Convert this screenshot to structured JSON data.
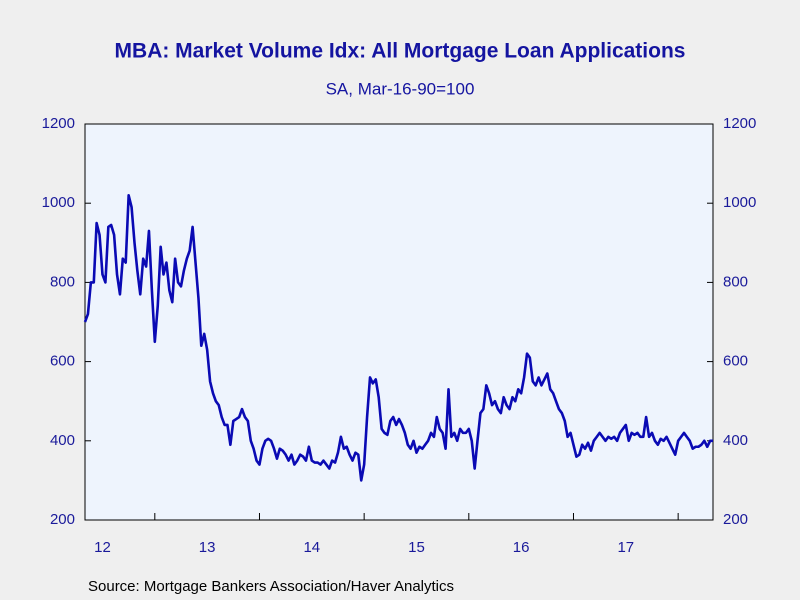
{
  "chart_data": {
    "type": "line",
    "title": "MBA: Market Volume Idx: All Mortgage Loan Applications",
    "subtitle": "SA, Mar-16-90=100",
    "source": "Source:  Mortgage Bankers Association/Haver Analytics",
    "x": [
      2012.333,
      2012.361,
      2012.389,
      2012.417,
      2012.444,
      2012.472,
      2012.5,
      2012.528,
      2012.556,
      2012.583,
      2012.611,
      2012.639,
      2012.667,
      2012.694,
      2012.722,
      2012.75,
      2012.778,
      2012.806,
      2012.833,
      2012.861,
      2012.889,
      2012.917,
      2012.944,
      2012.972,
      2013,
      2013.028,
      2013.056,
      2013.083,
      2013.111,
      2013.139,
      2013.167,
      2013.194,
      2013.222,
      2013.25,
      2013.278,
      2013.306,
      2013.333,
      2013.361,
      2013.389,
      2013.417,
      2013.444,
      2013.472,
      2013.5,
      2013.528,
      2013.556,
      2013.583,
      2013.611,
      2013.639,
      2013.667,
      2013.694,
      2013.722,
      2013.75,
      2013.778,
      2013.806,
      2013.833,
      2013.861,
      2013.889,
      2013.917,
      2013.944,
      2013.972,
      2014,
      2014.028,
      2014.056,
      2014.083,
      2014.111,
      2014.139,
      2014.167,
      2014.194,
      2014.222,
      2014.25,
      2014.278,
      2014.306,
      2014.333,
      2014.361,
      2014.389,
      2014.417,
      2014.444,
      2014.472,
      2014.5,
      2014.528,
      2014.556,
      2014.583,
      2014.611,
      2014.639,
      2014.667,
      2014.694,
      2014.722,
      2014.75,
      2014.778,
      2014.806,
      2014.833,
      2014.861,
      2014.889,
      2014.917,
      2014.944,
      2014.972,
      2015,
      2015.028,
      2015.056,
      2015.083,
      2015.111,
      2015.139,
      2015.167,
      2015.194,
      2015.222,
      2015.25,
      2015.278,
      2015.306,
      2015.333,
      2015.361,
      2015.389,
      2015.417,
      2015.444,
      2015.472,
      2015.5,
      2015.528,
      2015.556,
      2015.583,
      2015.611,
      2015.639,
      2015.667,
      2015.694,
      2015.722,
      2015.75,
      2015.778,
      2015.806,
      2015.833,
      2015.861,
      2015.889,
      2015.917,
      2015.944,
      2015.972,
      2016,
      2016.028,
      2016.056,
      2016.083,
      2016.111,
      2016.139,
      2016.167,
      2016.194,
      2016.222,
      2016.25,
      2016.278,
      2016.306,
      2016.333,
      2016.361,
      2016.389,
      2016.417,
      2016.444,
      2016.472,
      2016.5,
      2016.528,
      2016.556,
      2016.583,
      2016.611,
      2016.639,
      2016.667,
      2016.694,
      2016.722,
      2016.75,
      2016.778,
      2016.806,
      2016.833,
      2016.861,
      2016.889,
      2016.917,
      2016.944,
      2016.972,
      2017,
      2017.028,
      2017.056,
      2017.083,
      2017.111,
      2017.139,
      2017.167,
      2017.194,
      2017.222,
      2017.25,
      2017.278,
      2017.306,
      2017.333,
      2017.361,
      2017.389,
      2017.417,
      2017.444,
      2017.472,
      2017.5,
      2017.528,
      2017.556,
      2017.583,
      2017.611,
      2017.639,
      2017.667,
      2017.694,
      2017.722,
      2017.75,
      2017.778,
      2017.806,
      2017.833,
      2017.861,
      2017.889,
      2017.917,
      2017.944,
      2017.972,
      2018,
      2018.028,
      2018.056,
      2018.083,
      2018.111,
      2018.139,
      2018.167,
      2018.194,
      2018.222,
      2018.25,
      2018.278,
      2018.306,
      2018.333
    ],
    "series": [
      {
        "color": "#0a0ab4",
        "values": [
          700,
          720,
          800,
          800,
          950,
          920,
          820,
          800,
          940,
          945,
          920,
          820,
          770,
          860,
          850,
          1020,
          990,
          900,
          830,
          770,
          860,
          840,
          930,
          780,
          650,
          740,
          890,
          820,
          850,
          780,
          750,
          860,
          800,
          790,
          830,
          860,
          880,
          940,
          850,
          760,
          640,
          670,
          630,
          550,
          520,
          500,
          490,
          460,
          440,
          440,
          390,
          450,
          455,
          460,
          480,
          460,
          450,
          400,
          380,
          350,
          340,
          380,
          400,
          405,
          400,
          380,
          355,
          380,
          375,
          365,
          350,
          365,
          340,
          350,
          365,
          360,
          350,
          385,
          350,
          345,
          345,
          340,
          350,
          340,
          330,
          350,
          345,
          370,
          410,
          380,
          385,
          365,
          350,
          370,
          365,
          300,
          340,
          460,
          560,
          545,
          555,
          510,
          430,
          420,
          415,
          450,
          460,
          440,
          455,
          440,
          420,
          390,
          380,
          400,
          370,
          385,
          380,
          390,
          400,
          420,
          410,
          460,
          430,
          420,
          380,
          530,
          410,
          420,
          400,
          430,
          420,
          420,
          430,
          400,
          330,
          400,
          470,
          480,
          540,
          520,
          490,
          500,
          480,
          470,
          510,
          490,
          480,
          510,
          500,
          530,
          520,
          560,
          620,
          610,
          550,
          540,
          560,
          540,
          555,
          570,
          530,
          520,
          500,
          480,
          470,
          450,
          410,
          420,
          390,
          360,
          365,
          390,
          380,
          395,
          375,
          400,
          410,
          420,
          410,
          400,
          410,
          405,
          410,
          400,
          420,
          430,
          440,
          400,
          420,
          415,
          420,
          410,
          410,
          460,
          410,
          420,
          400,
          390,
          405,
          400,
          410,
          395,
          380,
          365,
          400,
          410,
          420,
          410,
          400,
          380,
          385,
          385,
          390,
          400,
          385,
          400,
          400
        ]
      }
    ],
    "xlim": [
      2012.333,
      2018.333
    ],
    "xticks": [
      {
        "value": 2012.5,
        "label": "12"
      },
      {
        "value": 2013.5,
        "label": "13"
      },
      {
        "value": 2014.5,
        "label": "14"
      },
      {
        "value": 2015.5,
        "label": "15"
      },
      {
        "value": 2016.5,
        "label": "16"
      },
      {
        "value": 2017.5,
        "label": "17"
      }
    ],
    "ylim": [
      200,
      1200
    ],
    "yticks": [
      200,
      400,
      600,
      800,
      1000,
      1200
    ],
    "y2lim": [
      200,
      1200
    ],
    "y2ticks": [
      200,
      400,
      600,
      800,
      1000,
      1200
    ]
  }
}
